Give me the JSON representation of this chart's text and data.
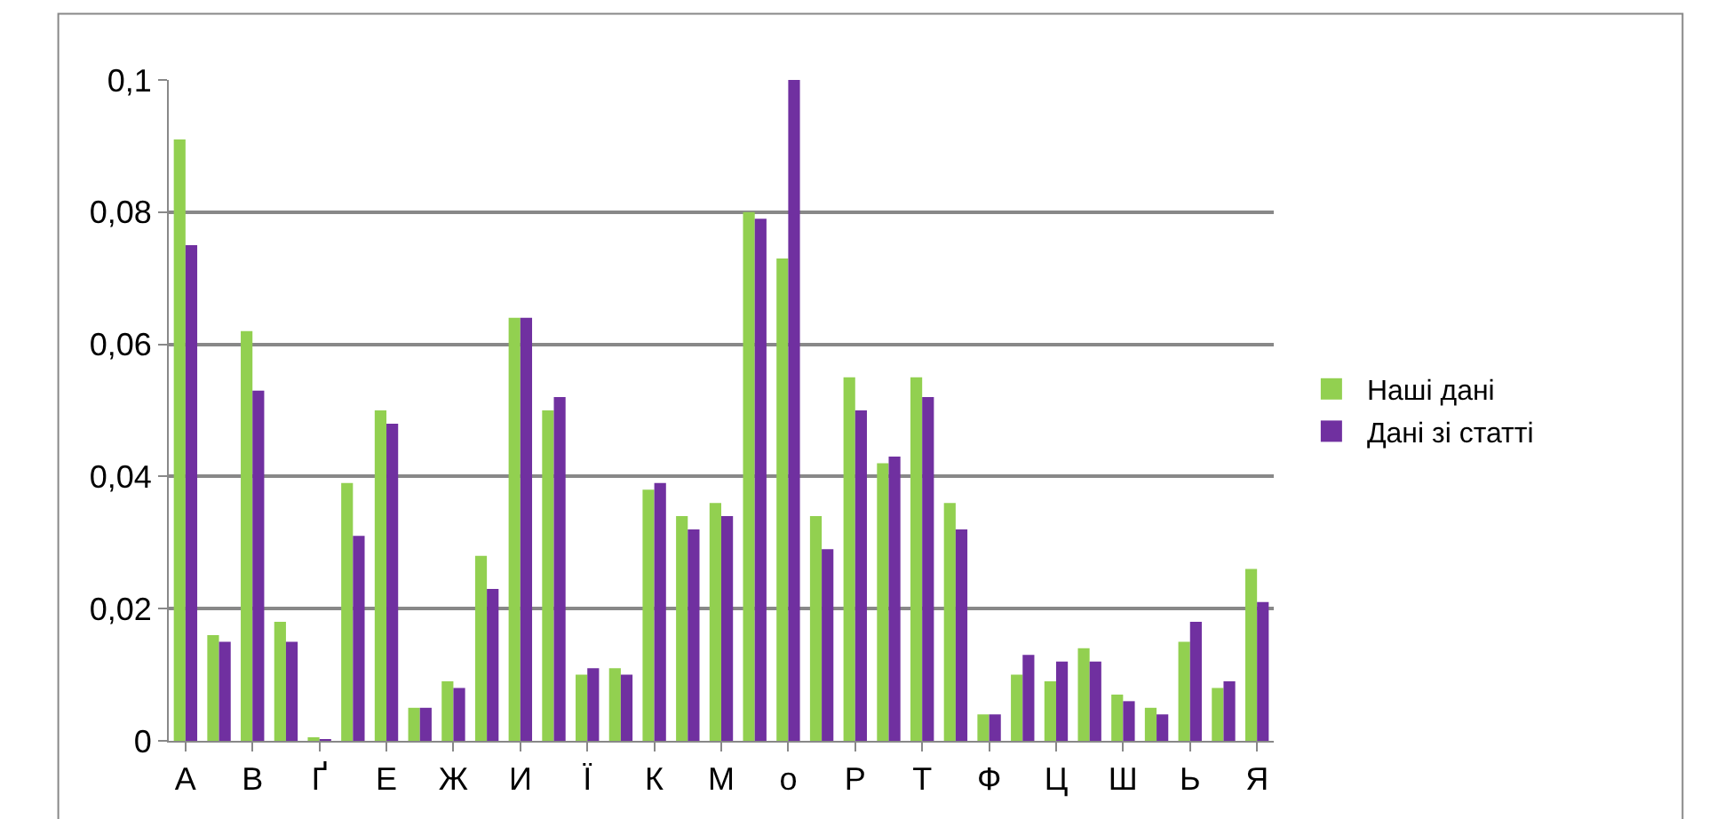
{
  "chart_data": {
    "type": "bar",
    "categories": [
      "А",
      null,
      "В",
      null,
      "Ґ",
      null,
      "Е",
      null,
      "Ж",
      null,
      "И",
      null,
      "Ї",
      null,
      "К",
      null,
      "М",
      null,
      "о",
      null,
      "Р",
      null,
      "Т",
      null,
      "Ф",
      null,
      "Ц",
      null,
      "Ш",
      null,
      "Ь",
      null,
      "Я"
    ],
    "series": [
      {
        "name": "Наші дані",
        "color": "#92d050",
        "values": [
          0.091,
          0.016,
          0.062,
          0.018,
          0.0003,
          0.039,
          0.05,
          0.005,
          0.009,
          0.028,
          0.064,
          0.05,
          0.01,
          0.011,
          0.038,
          0.034,
          0.036,
          0.08,
          0.073,
          0.034,
          0.055,
          0.042,
          0.055,
          0.036,
          0.004,
          0.01,
          0.009,
          0.014,
          0.007,
          0.005,
          0.015,
          0.008,
          0.026
        ]
      },
      {
        "name": "Дані зі статті",
        "color": "#7030a0",
        "values": [
          0.075,
          0.015,
          0.053,
          0.015,
          0.0002,
          0.031,
          0.048,
          0.005,
          0.008,
          0.023,
          0.064,
          0.052,
          0.011,
          0.01,
          0.039,
          0.032,
          0.034,
          0.079,
          0.1,
          0.029,
          0.05,
          0.043,
          0.052,
          0.032,
          0.004,
          0.013,
          0.012,
          0.012,
          0.006,
          0.004,
          0.018,
          0.009,
          0.021
        ]
      }
    ],
    "ylim": [
      0,
      0.1
    ],
    "yticks": [
      {
        "value": 0,
        "label": "0"
      },
      {
        "value": 0.02,
        "label": "0,02"
      },
      {
        "value": 0.04,
        "label": "0,04"
      },
      {
        "value": 0.06,
        "label": "0,06"
      },
      {
        "value": 0.08,
        "label": "0,08"
      },
      {
        "value": 0.1,
        "label": "0,1"
      }
    ],
    "grid": "y",
    "legend": "right"
  }
}
